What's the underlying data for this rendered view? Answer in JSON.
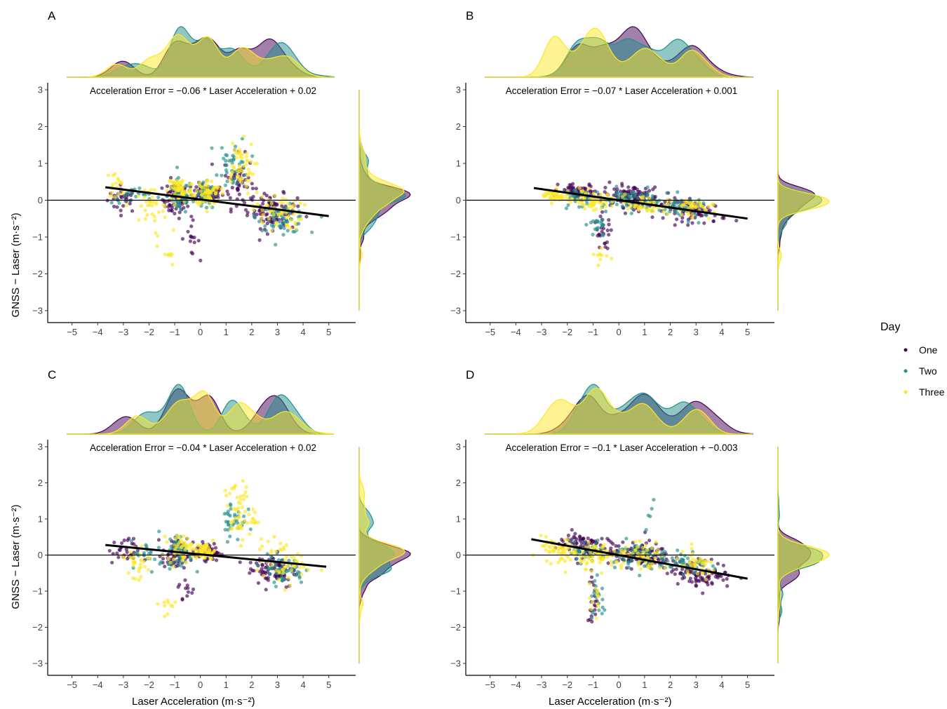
{
  "legend": {
    "title": "Day",
    "items": [
      {
        "label": "One",
        "color": "#440154"
      },
      {
        "label": "Two",
        "color": "#21908C"
      },
      {
        "label": "Three",
        "color": "#FDE725"
      }
    ]
  },
  "axes": {
    "ylabel": "GNSS − Laser (m·s⁻²)",
    "xlabel": "Laser Acceleration (m·s⁻²)"
  },
  "chart_data": [
    {
      "panel": "A",
      "type": "scatter",
      "equation": "Acceleration Error = −0.06 * Laser Acceleration + 0.02",
      "xlim": [
        -5.4,
        5.5
      ],
      "ylim": [
        -3.3,
        3.3
      ],
      "xticks": [
        -5,
        -4,
        -3,
        -2,
        -1,
        0,
        1,
        2,
        3,
        4,
        5
      ],
      "yticks": [
        -3,
        -2,
        -1,
        0,
        1,
        2,
        3
      ],
      "fit": {
        "slope": -0.06,
        "intercept": 0.02,
        "x_range": [
          -3.7,
          5
        ]
      },
      "hline": 0,
      "legend_position": "right",
      "series": [
        {
          "name": "One",
          "clusters": [
            [
              -3.0,
              0.05,
              0.5,
              0.3,
              30
            ],
            [
              -1.0,
              0.0,
              0.4,
              0.4,
              60
            ],
            [
              0.3,
              0.2,
              0.5,
              0.2,
              70
            ],
            [
              1.5,
              0.5,
              0.5,
              0.6,
              50
            ],
            [
              2.8,
              -0.3,
              0.8,
              0.4,
              90
            ],
            [
              -0.4,
              -1.0,
              0.3,
              0.4,
              15
            ]
          ]
        },
        {
          "name": "Two",
          "clusters": [
            [
              -2.5,
              0.1,
              0.8,
              0.2,
              25
            ],
            [
              -0.8,
              0.1,
              0.4,
              0.4,
              60
            ],
            [
              0.2,
              0.1,
              0.3,
              0.3,
              40
            ],
            [
              1.3,
              1.0,
              0.5,
              0.6,
              40
            ],
            [
              3.2,
              -0.5,
              0.8,
              0.3,
              60
            ]
          ]
        },
        {
          "name": "Three",
          "clusters": [
            [
              -3.3,
              0.4,
              0.3,
              0.3,
              20
            ],
            [
              -2.0,
              -0.2,
              0.7,
              0.5,
              35
            ],
            [
              -0.8,
              0.3,
              0.4,
              0.3,
              60
            ],
            [
              0.3,
              0.2,
              0.4,
              0.3,
              70
            ],
            [
              1.5,
              0.9,
              0.5,
              0.6,
              50
            ],
            [
              3.0,
              -0.3,
              0.8,
              0.4,
              60
            ],
            [
              -1.3,
              -1.4,
              0.3,
              0.5,
              10
            ]
          ]
        }
      ]
    },
    {
      "panel": "B",
      "type": "scatter",
      "equation": "Acceleration Error = −0.07 * Laser Acceleration + 0.001",
      "xlim": [
        -5.4,
        5.5
      ],
      "ylim": [
        -3.3,
        3.3
      ],
      "xticks": [
        -5,
        -4,
        -3,
        -2,
        -1,
        0,
        1,
        2,
        3,
        4,
        5
      ],
      "yticks": [
        -3,
        -2,
        -1,
        0,
        1,
        2,
        3
      ],
      "fit": {
        "slope": -0.07,
        "intercept": 0.001,
        "x_range": [
          -3.3,
          5
        ]
      },
      "hline": 0,
      "legend_position": "right",
      "series": [
        {
          "name": "One",
          "clusters": [
            [
              -1.5,
              0.2,
              0.7,
              0.2,
              60
            ],
            [
              0.5,
              0.1,
              0.9,
              0.25,
              120
            ],
            [
              3.0,
              -0.3,
              1.0,
              0.25,
              80
            ],
            [
              -0.6,
              -0.9,
              0.3,
              0.4,
              25
            ]
          ]
        },
        {
          "name": "Two",
          "clusters": [
            [
              -1.5,
              0.1,
              0.7,
              0.2,
              40
            ],
            [
              0.5,
              0.0,
              0.9,
              0.25,
              60
            ],
            [
              2.5,
              -0.2,
              0.9,
              0.25,
              50
            ],
            [
              -0.8,
              -0.7,
              0.3,
              0.3,
              20
            ]
          ]
        },
        {
          "name": "Three",
          "clusters": [
            [
              -2.5,
              0.1,
              0.5,
              0.15,
              50
            ],
            [
              -1.0,
              0.0,
              0.6,
              0.2,
              60
            ],
            [
              1.0,
              -0.1,
              0.8,
              0.2,
              50
            ],
            [
              2.8,
              -0.2,
              0.7,
              0.2,
              40
            ],
            [
              -0.8,
              -1.5,
              0.3,
              0.3,
              10
            ]
          ]
        }
      ]
    },
    {
      "panel": "C",
      "type": "scatter",
      "equation": "Acceleration Error = −0.04 * Laser Acceleration + 0.02",
      "xlim": [
        -5.4,
        5.5
      ],
      "ylim": [
        -3.3,
        3.3
      ],
      "xticks": [
        -5,
        -4,
        -3,
        -2,
        -1,
        0,
        1,
        2,
        3,
        4,
        5
      ],
      "yticks": [
        -3,
        -2,
        -1,
        0,
        1,
        2,
        3
      ],
      "fit": {
        "slope": -0.04,
        "intercept": 0.02,
        "x_range": [
          -3.7,
          4.9
        ]
      },
      "hline": 0,
      "legend_position": "right",
      "series": [
        {
          "name": "One",
          "clusters": [
            [
              -3.0,
              0.1,
              0.5,
              0.3,
              30
            ],
            [
              -1.0,
              0.0,
              0.4,
              0.4,
              60
            ],
            [
              0.3,
              0.1,
              0.4,
              0.2,
              60
            ],
            [
              2.8,
              -0.4,
              0.8,
              0.4,
              80
            ],
            [
              -0.5,
              -1.0,
              0.3,
              0.3,
              12
            ]
          ]
        },
        {
          "name": "Two",
          "clusters": [
            [
              -2.0,
              0.0,
              0.6,
              0.3,
              25
            ],
            [
              -0.8,
              0.1,
              0.4,
              0.4,
              50
            ],
            [
              1.3,
              1.0,
              0.4,
              0.5,
              35
            ],
            [
              3.2,
              -0.4,
              0.7,
              0.3,
              50
            ]
          ]
        },
        {
          "name": "Three",
          "clusters": [
            [
              -2.5,
              -0.2,
              0.6,
              0.5,
              30
            ],
            [
              -0.8,
              0.2,
              0.4,
              0.3,
              50
            ],
            [
              0.2,
              0.1,
              0.3,
              0.2,
              60
            ],
            [
              1.5,
              1.2,
              0.5,
              0.7,
              55
            ],
            [
              3.2,
              -0.2,
              0.9,
              0.5,
              55
            ],
            [
              -1.3,
              -1.4,
              0.3,
              0.4,
              10
            ]
          ]
        }
      ]
    },
    {
      "panel": "D",
      "type": "scatter",
      "equation": "Acceleration Error = −0.1 * Laser Acceleration + −0.003",
      "xlim": [
        -5.4,
        5.5
      ],
      "ylim": [
        -3.3,
        3.3
      ],
      "xticks": [
        -5,
        -4,
        -3,
        -2,
        -1,
        0,
        1,
        2,
        3,
        4,
        5
      ],
      "yticks": [
        -3,
        -2,
        -1,
        0,
        1,
        2,
        3
      ],
      "fit": {
        "slope": -0.1,
        "intercept": -0.003,
        "x_range": [
          -3.4,
          5
        ]
      },
      "hline": 0,
      "legend_position": "right",
      "series": [
        {
          "name": "One",
          "clusters": [
            [
              -1.5,
              0.3,
              0.8,
              0.3,
              80
            ],
            [
              0.8,
              0.0,
              1.0,
              0.3,
              130
            ],
            [
              3.2,
              -0.5,
              1.0,
              0.3,
              100
            ],
            [
              -1.0,
              -1.2,
              0.2,
              0.6,
              20
            ]
          ]
        },
        {
          "name": "Two",
          "clusters": [
            [
              -1.2,
              0.1,
              0.6,
              0.3,
              40
            ],
            [
              0.5,
              0.0,
              0.8,
              0.3,
              60
            ],
            [
              2.5,
              -0.2,
              0.8,
              0.3,
              50
            ],
            [
              -0.8,
              -1.3,
              0.3,
              0.6,
              20
            ],
            [
              1.2,
              1.4,
              0.2,
              0.5,
              5
            ]
          ]
        },
        {
          "name": "Three",
          "clusters": [
            [
              -2.3,
              0.1,
              0.6,
              0.3,
              60
            ],
            [
              -0.8,
              0.0,
              0.6,
              0.3,
              60
            ],
            [
              1.0,
              -0.1,
              0.9,
              0.3,
              60
            ],
            [
              3.0,
              -0.3,
              0.7,
              0.3,
              40
            ],
            [
              -1.0,
              -1.3,
              0.3,
              0.5,
              12
            ]
          ]
        }
      ]
    }
  ]
}
